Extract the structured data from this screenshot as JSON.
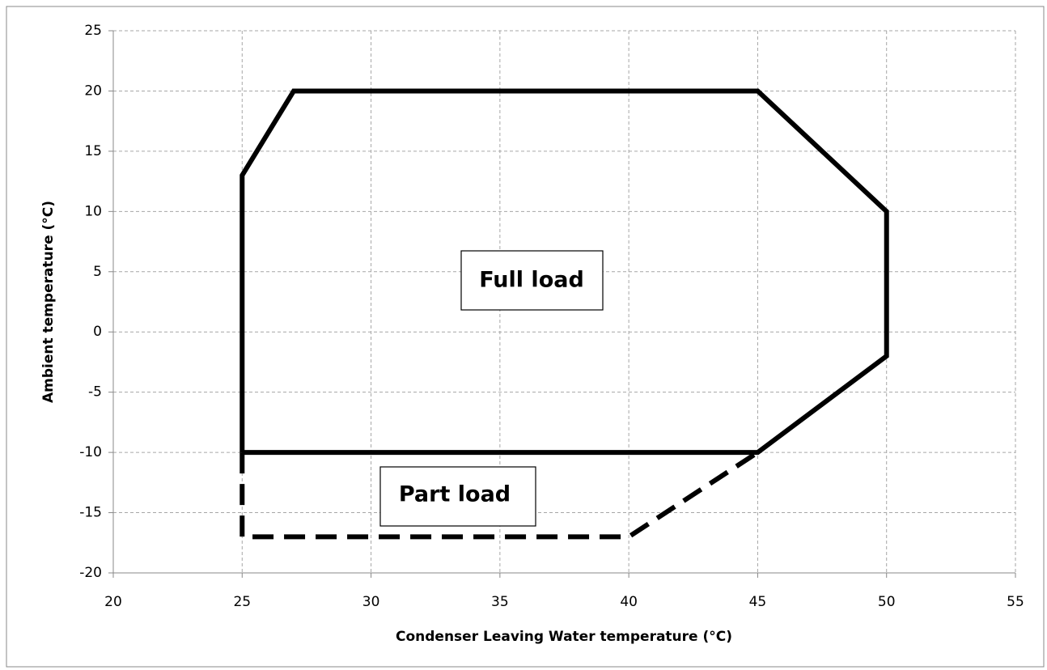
{
  "chart_data": {
    "type": "line",
    "x_label": "Condenser Leaving Water temperature (°C)",
    "y_label": "Ambient temperature (°C)",
    "xlim": [
      20,
      55
    ],
    "xticks": [
      20,
      25,
      30,
      35,
      40,
      45,
      50,
      55
    ],
    "ylim": [
      -20,
      25
    ],
    "yticks": [
      -20,
      -15,
      -10,
      -5,
      0,
      5,
      10,
      15,
      20,
      25
    ],
    "grid": true,
    "series": [
      {
        "name": "Full load",
        "color": "#000000",
        "style": "solid",
        "x": [
          25,
          25,
          27,
          45,
          50,
          50,
          45,
          25
        ],
        "values": [
          -10,
          13,
          20,
          20,
          10,
          -2,
          -10,
          -10
        ]
      },
      {
        "name": "Part load",
        "color": "#000000",
        "style": "dashed",
        "x": [
          25,
          25,
          40,
          45
        ],
        "values": [
          -10,
          -17,
          -17,
          -10
        ]
      }
    ]
  }
}
